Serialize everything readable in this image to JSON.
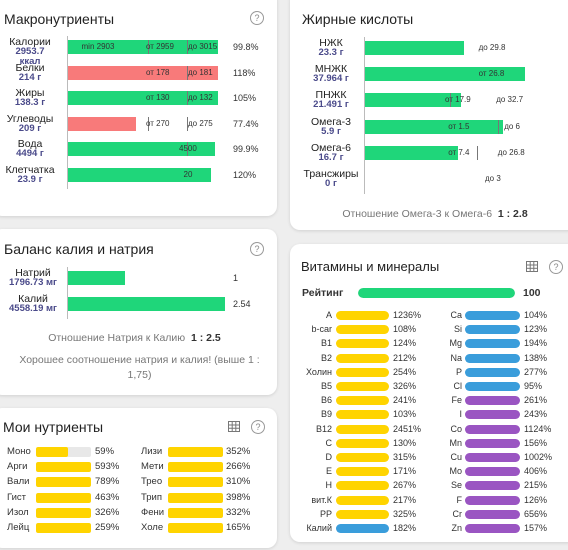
{
  "macro": {
    "title": "Макронутриенты",
    "rows": [
      {
        "name": "Калории",
        "value": "2953.7\nккал",
        "fill": 1.0,
        "color": "g",
        "pct": "99.8%",
        "marks": [
          {
            "t": "min 2903",
            "x": 0.09
          },
          {
            "t": "от 2959",
            "x": 0.52
          },
          {
            "t": "до 3015",
            "x": 0.8
          }
        ],
        "ticks": [
          0.53,
          0.79
        ]
      },
      {
        "name": "Белки",
        "value": "214 г",
        "fill": 1.0,
        "color": "r",
        "pct": "118%",
        "marks": [
          {
            "t": "от 178",
            "x": 0.52
          },
          {
            "t": "до 181",
            "x": 0.8
          }
        ],
        "ticks": [
          0.79
        ]
      },
      {
        "name": "Жиры",
        "value": "138.3 г",
        "fill": 1.0,
        "color": "g",
        "pct": "105%",
        "marks": [
          {
            "t": "от 130",
            "x": 0.52
          },
          {
            "t": "до 132",
            "x": 0.8
          }
        ],
        "ticks": [
          0.79
        ]
      },
      {
        "name": "Углеводы",
        "value": "209 г",
        "fill": 0.45,
        "color": "r",
        "pct": "77.4%",
        "marks": [
          {
            "t": "от 270",
            "x": 0.52
          },
          {
            "t": "до 275",
            "x": 0.8
          }
        ],
        "ticks": [
          0.53,
          0.79
        ]
      },
      {
        "name": "Вода",
        "value": "4494 г",
        "fill": 0.98,
        "color": "g",
        "pct": "99.9%",
        "marks": [
          {
            "t": "4500",
            "x": 0.74
          }
        ],
        "ticks": [
          0.79
        ]
      },
      {
        "name": "Клетчатка",
        "value": "23.9 г",
        "fill": 0.95,
        "color": "g",
        "pct": "120%",
        "marks": [
          {
            "t": "20",
            "x": 0.77
          }
        ],
        "ticks": []
      }
    ]
  },
  "fatty": {
    "title": "Жирные кислоты",
    "rows": [
      {
        "name": "НЖК",
        "value": "23.3 г",
        "fill": 0.62,
        "color": "g",
        "marks": [
          {
            "t": "до 29.8",
            "x": 0.71
          }
        ],
        "ticks": []
      },
      {
        "name": "МНЖК",
        "value": "37.964 г",
        "fill": 1.0,
        "color": "g",
        "marks": [
          {
            "t": "от 26.8",
            "x": 0.71
          }
        ],
        "ticks": []
      },
      {
        "name": "ПНЖК",
        "value": "21.491 г",
        "fill": 0.6,
        "color": "g",
        "marks": [
          {
            "t": "от 17.9",
            "x": 0.5
          },
          {
            "t": "до 32.7",
            "x": 0.82
          }
        ],
        "ticks": [
          0.53
        ]
      },
      {
        "name": "Омега-3",
        "value": "5.9 г",
        "fill": 0.86,
        "color": "g",
        "marks": [
          {
            "t": "от 1.5",
            "x": 0.52
          },
          {
            "t": "до 6",
            "x": 0.87
          }
        ],
        "ticks": [
          0.83
        ]
      },
      {
        "name": "Омега-6",
        "value": "16.7 г",
        "fill": 0.58,
        "color": "g",
        "marks": [
          {
            "t": "от 7.4",
            "x": 0.52
          },
          {
            "t": "до 26.8",
            "x": 0.83
          }
        ],
        "ticks": [
          0.7
        ]
      },
      {
        "name": "Трансжиры",
        "value": "0 г",
        "fill": 0.0,
        "color": "g",
        "marks": [
          {
            "t": "до 3",
            "x": 0.75
          }
        ],
        "ticks": []
      }
    ],
    "ratio_label": "Отношение Омега-3 к Омега-6",
    "ratio_value": "1 : 2.8"
  },
  "balance": {
    "title": "Баланс калия и натрия",
    "rows": [
      {
        "name": "Натрий",
        "value": "1796.73 мг",
        "fill": 0.36,
        "color": "g",
        "pct": "1"
      },
      {
        "name": "Калий",
        "value": "4558.19 мг",
        "fill": 1.0,
        "color": "g",
        "pct": "2.54"
      }
    ],
    "ratio_label": "Отношение Натрия к Калию",
    "ratio_value": "1 : 2.5",
    "advice": "Хорошее соотношение натрия и калия! (выше 1 : 1,75)"
  },
  "vitamins": {
    "title": "Витамины и минералы",
    "rating_label": "Рейтинг",
    "rating_value": "100",
    "rating_fill": 1.0,
    "left": [
      {
        "name": "A",
        "pct": "1236%",
        "color": "y"
      },
      {
        "name": "b-car",
        "pct": "108%",
        "color": "y"
      },
      {
        "name": "B1",
        "pct": "124%",
        "color": "y"
      },
      {
        "name": "B2",
        "pct": "212%",
        "color": "y"
      },
      {
        "name": "Холин",
        "pct": "254%",
        "color": "y"
      },
      {
        "name": "B5",
        "pct": "326%",
        "color": "y"
      },
      {
        "name": "B6",
        "pct": "241%",
        "color": "y"
      },
      {
        "name": "B9",
        "pct": "103%",
        "color": "y"
      },
      {
        "name": "B12",
        "pct": "2451%",
        "color": "y"
      },
      {
        "name": "C",
        "pct": "130%",
        "color": "y"
      },
      {
        "name": "D",
        "pct": "315%",
        "color": "y"
      },
      {
        "name": "E",
        "pct": "171%",
        "color": "y"
      },
      {
        "name": "H",
        "pct": "267%",
        "color": "y"
      },
      {
        "name": "вит.К",
        "pct": "217%",
        "color": "y"
      },
      {
        "name": "PP",
        "pct": "325%",
        "color": "y"
      },
      {
        "name": "Калий",
        "pct": "182%",
        "color": "b"
      }
    ],
    "right": [
      {
        "name": "Ca",
        "pct": "104%",
        "color": "b"
      },
      {
        "name": "Si",
        "pct": "123%",
        "color": "b"
      },
      {
        "name": "Mg",
        "pct": "194%",
        "color": "b"
      },
      {
        "name": "Na",
        "pct": "138%",
        "color": "b"
      },
      {
        "name": "P",
        "pct": "277%",
        "color": "b"
      },
      {
        "name": "Cl",
        "pct": "95%",
        "color": "b"
      },
      {
        "name": "Fe",
        "pct": "261%",
        "color": "p"
      },
      {
        "name": "I",
        "pct": "243%",
        "color": "p"
      },
      {
        "name": "Co",
        "pct": "1124%",
        "color": "p"
      },
      {
        "name": "Mn",
        "pct": "156%",
        "color": "p"
      },
      {
        "name": "Cu",
        "pct": "1002%",
        "color": "p"
      },
      {
        "name": "Mo",
        "pct": "406%",
        "color": "p"
      },
      {
        "name": "Se",
        "pct": "215%",
        "color": "p"
      },
      {
        "name": "F",
        "pct": "126%",
        "color": "p"
      },
      {
        "name": "Cr",
        "pct": "656%",
        "color": "p"
      },
      {
        "name": "Zn",
        "pct": "157%",
        "color": "p"
      }
    ]
  },
  "mynut": {
    "title": "Мои нутриенты",
    "left": [
      {
        "name": "Моно",
        "pct": "59%",
        "fill": 0.59
      },
      {
        "name": "Арги",
        "pct": "593%",
        "fill": 1.0
      },
      {
        "name": "Вали",
        "pct": "789%",
        "fill": 1.0
      },
      {
        "name": "Гист",
        "pct": "463%",
        "fill": 1.0
      },
      {
        "name": "Изол",
        "pct": "326%",
        "fill": 1.0
      },
      {
        "name": "Лейц",
        "pct": "259%",
        "fill": 1.0
      }
    ],
    "right": [
      {
        "name": "Лизи",
        "pct": "352%",
        "fill": 1.0
      },
      {
        "name": "Мети",
        "pct": "266%",
        "fill": 1.0
      },
      {
        "name": "Трео",
        "pct": "310%",
        "fill": 1.0
      },
      {
        "name": "Трип",
        "pct": "398%",
        "fill": 1.0
      },
      {
        "name": "Фени",
        "pct": "332%",
        "fill": 1.0
      },
      {
        "name": "Холе",
        "pct": "165%",
        "fill": 1.0
      }
    ]
  }
}
